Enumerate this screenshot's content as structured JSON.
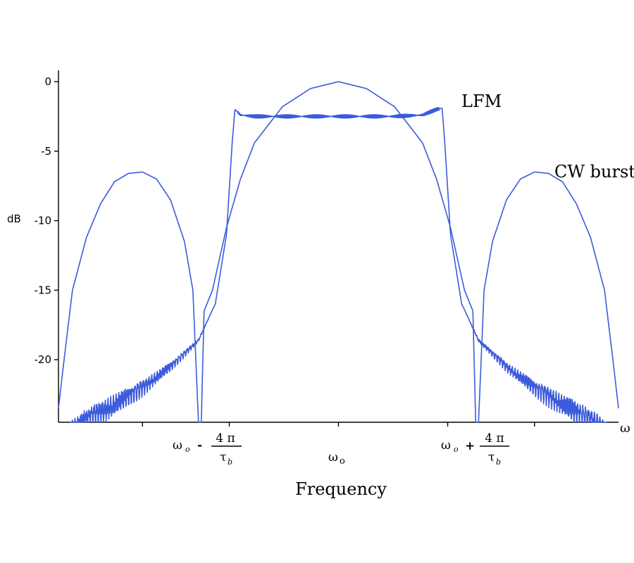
{
  "chart_data": {
    "type": "line",
    "title": "",
    "xlabel": "Frequency",
    "ylabel": "dB",
    "x_axis_symbol": "ω",
    "xlim": [
      -1,
      1
    ],
    "ylim": [
      -24.5,
      0.5
    ],
    "yticks": [
      0,
      -5,
      -10,
      -15,
      -20
    ],
    "ytick_labels": [
      "0",
      "-5",
      "-10",
      "-15",
      "-20"
    ],
    "xticks": [
      -0.7,
      -0.39,
      0.0,
      0.39,
      0.7
    ],
    "x_markers": {
      "left": {
        "x": -0.5,
        "symbol": "ω",
        "subscript": "o",
        "operator": "-",
        "numerator": "4 π",
        "denominator": "τ",
        "denominator_subscript": "b"
      },
      "center": {
        "x": 0.0,
        "symbol": "ω",
        "subscript": "o"
      },
      "right": {
        "x": 0.5,
        "symbol": "ω",
        "subscript": "o",
        "operator": "+",
        "numerator": "4 π",
        "denominator": "τ",
        "denominator_subscript": "b"
      }
    },
    "series": [
      {
        "name": "LFM",
        "color": "#3b5bdb",
        "x": [
          -0.96,
          -0.9,
          -0.8,
          -0.7,
          -0.6,
          -0.5,
          -0.44,
          -0.4,
          -0.38,
          -0.37,
          -0.35,
          -0.3,
          -0.2,
          -0.1,
          0.0,
          0.1,
          0.2,
          0.3,
          0.35,
          0.37,
          0.38,
          0.4,
          0.44,
          0.5,
          0.6,
          0.7,
          0.8,
          0.9,
          0.96
        ],
        "y": [
          -24.5,
          -23.5,
          -22.5,
          -21.5,
          -20.2,
          -18.5,
          -16.0,
          -11.0,
          -4.5,
          -2.0,
          -2.4,
          -2.5,
          -2.5,
          -2.5,
          -2.5,
          -2.5,
          -2.5,
          -2.4,
          -2.0,
          -1.9,
          -4.5,
          -11.0,
          -16.0,
          -18.5,
          -20.2,
          -21.5,
          -22.5,
          -23.5,
          -24.5
        ]
      },
      {
        "name": "CW burst",
        "color": "#3b5bdb",
        "x": [
          -1.0,
          -0.98,
          -0.95,
          -0.9,
          -0.85,
          -0.8,
          -0.75,
          -0.7,
          -0.65,
          -0.6,
          -0.55,
          -0.52,
          -0.5,
          -0.49,
          -0.48,
          -0.45,
          -0.4,
          -0.35,
          -0.3,
          -0.2,
          -0.1,
          0.0,
          0.1,
          0.2,
          0.3,
          0.35,
          0.4,
          0.45,
          0.48,
          0.49,
          0.5,
          0.52,
          0.55,
          0.6,
          0.65,
          0.7,
          0.75,
          0.8,
          0.85,
          0.9,
          0.95,
          0.98,
          1.0
        ],
        "y": [
          -23.5,
          -20.0,
          -15.0,
          -11.2,
          -8.8,
          -7.2,
          -6.6,
          -6.5,
          -7.0,
          -8.5,
          -11.5,
          -15.0,
          -24.5,
          -24.5,
          -16.5,
          -15.0,
          -10.5,
          -7.0,
          -4.4,
          -1.8,
          -0.5,
          0.0,
          -0.5,
          -1.8,
          -4.4,
          -7.0,
          -10.5,
          -15.0,
          -16.5,
          -24.5,
          -24.5,
          -15.0,
          -11.5,
          -8.5,
          -7.0,
          -6.5,
          -6.6,
          -7.2,
          -8.8,
          -11.2,
          -15.0,
          -20.0,
          -23.5
        ]
      }
    ],
    "annotations": [
      {
        "text": "LFM",
        "x": 0.52,
        "y": -1.5
      },
      {
        "text": "CW burst",
        "x": 0.82,
        "y": -6.5
      }
    ],
    "grid": false,
    "legend": "none"
  }
}
